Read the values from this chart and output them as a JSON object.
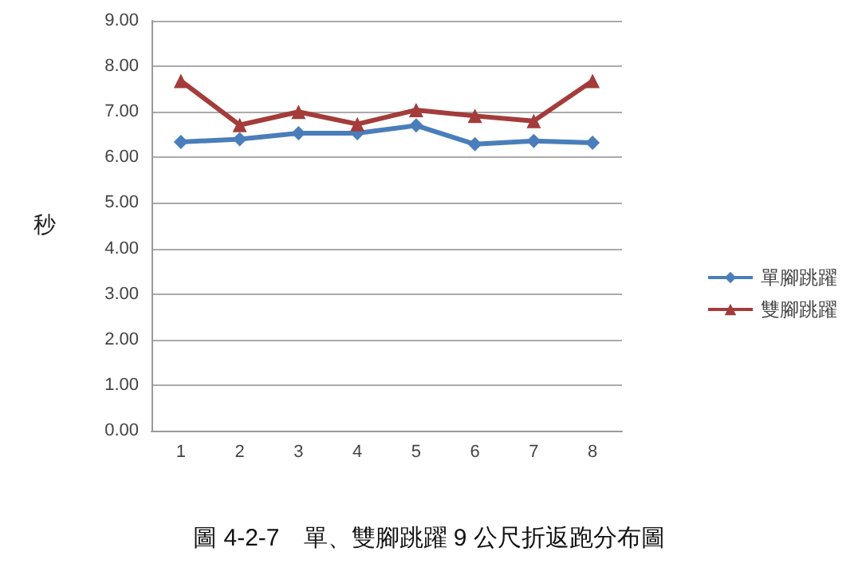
{
  "chart_data": {
    "type": "line",
    "ylabel": "秒",
    "annotations": [
      "圖 4-2-7　單、雙腳跳躍 9 公尺折返跑分布圖"
    ],
    "categories": [
      "1",
      "2",
      "3",
      "4",
      "5",
      "6",
      "7",
      "8"
    ],
    "series": [
      {
        "name": "單腳跳躍",
        "color": "#4a7ebb",
        "marker": "diamond",
        "values": [
          6.34,
          6.4,
          6.53,
          6.53,
          6.7,
          6.29,
          6.36,
          6.32
        ]
      },
      {
        "name": "雙腳跳躍",
        "color": "#a33c3a",
        "marker": "triangle",
        "values": [
          7.68,
          6.71,
          7.0,
          6.73,
          7.04,
          6.91,
          6.8,
          7.68
        ]
      }
    ],
    "ylim": [
      0,
      9
    ],
    "yticks": [
      {
        "value": 0,
        "label": "0.00"
      },
      {
        "value": 1,
        "label": "1.00"
      },
      {
        "value": 2,
        "label": "2.00"
      },
      {
        "value": 3,
        "label": "3.00"
      },
      {
        "value": 4,
        "label": "4.00"
      },
      {
        "value": 5,
        "label": "5.00"
      },
      {
        "value": 6,
        "label": "6.00"
      },
      {
        "value": 7,
        "label": "7.00"
      },
      {
        "value": 8,
        "label": "8.00"
      },
      {
        "value": 9,
        "label": "9.00"
      }
    ],
    "grid": "y",
    "legend": "right",
    "line_style": "solid"
  }
}
